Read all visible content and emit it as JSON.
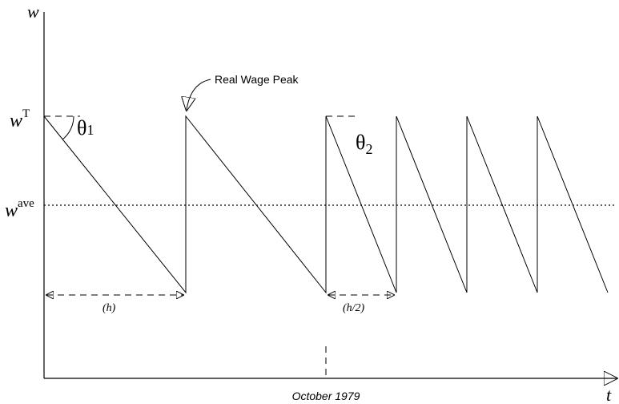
{
  "axes": {
    "y_label": "w",
    "x_label": "t"
  },
  "levels": {
    "target": {
      "base": "w",
      "sup": "T"
    },
    "average": {
      "base": "w",
      "sup": "ave"
    }
  },
  "angles": {
    "first": {
      "base": "θ",
      "sub": "1"
    },
    "second": {
      "base": "θ",
      "sub": "2"
    }
  },
  "annotations": {
    "peak": "Real Wage Peak",
    "period": "(h)",
    "half_period": "(h/2)",
    "event": "October 1979"
  }
}
